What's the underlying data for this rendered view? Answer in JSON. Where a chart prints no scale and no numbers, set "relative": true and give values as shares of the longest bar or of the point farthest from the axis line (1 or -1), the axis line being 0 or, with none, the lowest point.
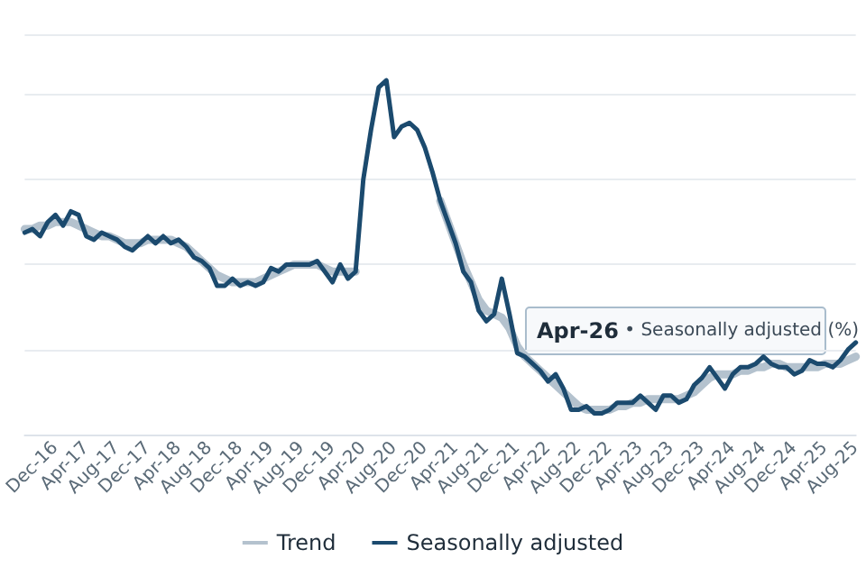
{
  "chart_data": {
    "type": "line",
    "relative": true,
    "grid": "y",
    "legend": "bottom",
    "marker": "none",
    "line_style": "solid",
    "categories": [
      null,
      null,
      null,
      null,
      "Dec-16",
      null,
      null,
      null,
      "Apr-17",
      null,
      null,
      null,
      "Aug-17",
      null,
      null,
      null,
      "Dec-17",
      null,
      null,
      null,
      "Apr-18",
      null,
      null,
      null,
      "Aug-18",
      null,
      null,
      null,
      "Dec-18",
      null,
      null,
      null,
      "Apr-19",
      null,
      null,
      null,
      "Aug-19",
      null,
      null,
      null,
      "Dec-19",
      null,
      null,
      null,
      "Apr-20",
      null,
      null,
      null,
      "Aug-20",
      null,
      null,
      null,
      "Dec-20",
      null,
      null,
      null,
      "Apr-21",
      null,
      null,
      null,
      "Aug-21",
      null,
      null,
      null,
      "Dec-21",
      null,
      null,
      null,
      "Apr-22",
      null,
      null,
      null,
      "Aug-22",
      null,
      null,
      null,
      "Dec-22",
      null,
      null,
      null,
      "Apr-23",
      null,
      null,
      null,
      "Aug-23",
      null,
      null,
      null,
      "Dec-23",
      null,
      null,
      null,
      "Apr-24",
      null,
      null,
      null,
      "Aug-24",
      null,
      null,
      null,
      "Dec-24",
      null,
      null,
      null,
      "Apr-25",
      null,
      null,
      null,
      "Aug-25"
    ],
    "series": [
      {
        "name": "Trend",
        "color": "#b4c2ce",
        "values": [
          0.58,
          0.58,
          0.59,
          0.59,
          0.6,
          0.6,
          0.6,
          0.59,
          0.58,
          0.57,
          0.56,
          0.56,
          0.55,
          0.54,
          0.54,
          0.54,
          0.55,
          0.55,
          0.55,
          0.55,
          0.54,
          0.53,
          0.51,
          0.49,
          0.47,
          0.45,
          0.44,
          0.43,
          0.43,
          0.43,
          0.43,
          0.44,
          0.45,
          0.46,
          0.47,
          0.48,
          0.48,
          0.48,
          0.48,
          0.47,
          0.46,
          0.46,
          0.46,
          0.46,
          null,
          null,
          null,
          null,
          null,
          null,
          null,
          null,
          null,
          null,
          0.66,
          0.6,
          0.54,
          0.48,
          0.43,
          0.38,
          0.35,
          0.34,
          0.33,
          0.3,
          0.25,
          0.22,
          0.2,
          0.18,
          0.16,
          0.14,
          0.12,
          0.1,
          0.08,
          0.07,
          0.07,
          0.07,
          0.07,
          0.08,
          0.08,
          0.09,
          0.09,
          0.1,
          0.1,
          0.1,
          0.1,
          0.1,
          0.11,
          0.12,
          0.14,
          0.16,
          0.17,
          0.17,
          0.17,
          0.18,
          0.18,
          0.19,
          0.19,
          0.2,
          0.2,
          0.19,
          0.19,
          0.19,
          0.19,
          0.19,
          0.2,
          0.2,
          0.2,
          0.21,
          0.22
        ]
      },
      {
        "name": "Seasonally adjusted",
        "color": "#1b4a6e",
        "values": [
          0.57,
          0.58,
          0.56,
          0.6,
          0.62,
          0.59,
          0.63,
          0.62,
          0.56,
          0.55,
          0.57,
          0.56,
          0.55,
          0.53,
          0.52,
          0.54,
          0.56,
          0.54,
          0.56,
          0.54,
          0.55,
          0.53,
          0.5,
          0.49,
          0.47,
          0.42,
          0.42,
          0.44,
          0.42,
          0.43,
          0.42,
          0.43,
          0.47,
          0.46,
          0.48,
          0.48,
          0.48,
          0.48,
          0.49,
          0.46,
          0.43,
          0.48,
          0.44,
          0.46,
          0.72,
          0.86,
          0.98,
          1,
          0.84,
          0.87,
          0.88,
          0.86,
          0.81,
          0.74,
          0.66,
          0.6,
          0.54,
          0.46,
          0.43,
          0.35,
          0.32,
          0.34,
          0.44,
          0.34,
          0.23,
          0.22,
          0.2,
          0.18,
          0.15,
          0.17,
          0.13,
          0.07,
          0.07,
          0.08,
          0.06,
          0.06,
          0.07,
          0.09,
          0.09,
          0.09,
          0.11,
          0.09,
          0.07,
          0.11,
          0.11,
          0.09,
          0.1,
          0.14,
          0.16,
          0.19,
          0.16,
          0.13,
          0.17,
          0.19,
          0.19,
          0.2,
          0.22,
          0.2,
          0.19,
          0.19,
          0.17,
          0.18,
          0.21,
          0.2,
          0.2,
          0.19,
          0.21,
          0.24,
          0.26
        ]
      }
    ],
    "annotations": [
      "Apr-26 • Seasonally adjusted (%)"
    ]
  }
}
